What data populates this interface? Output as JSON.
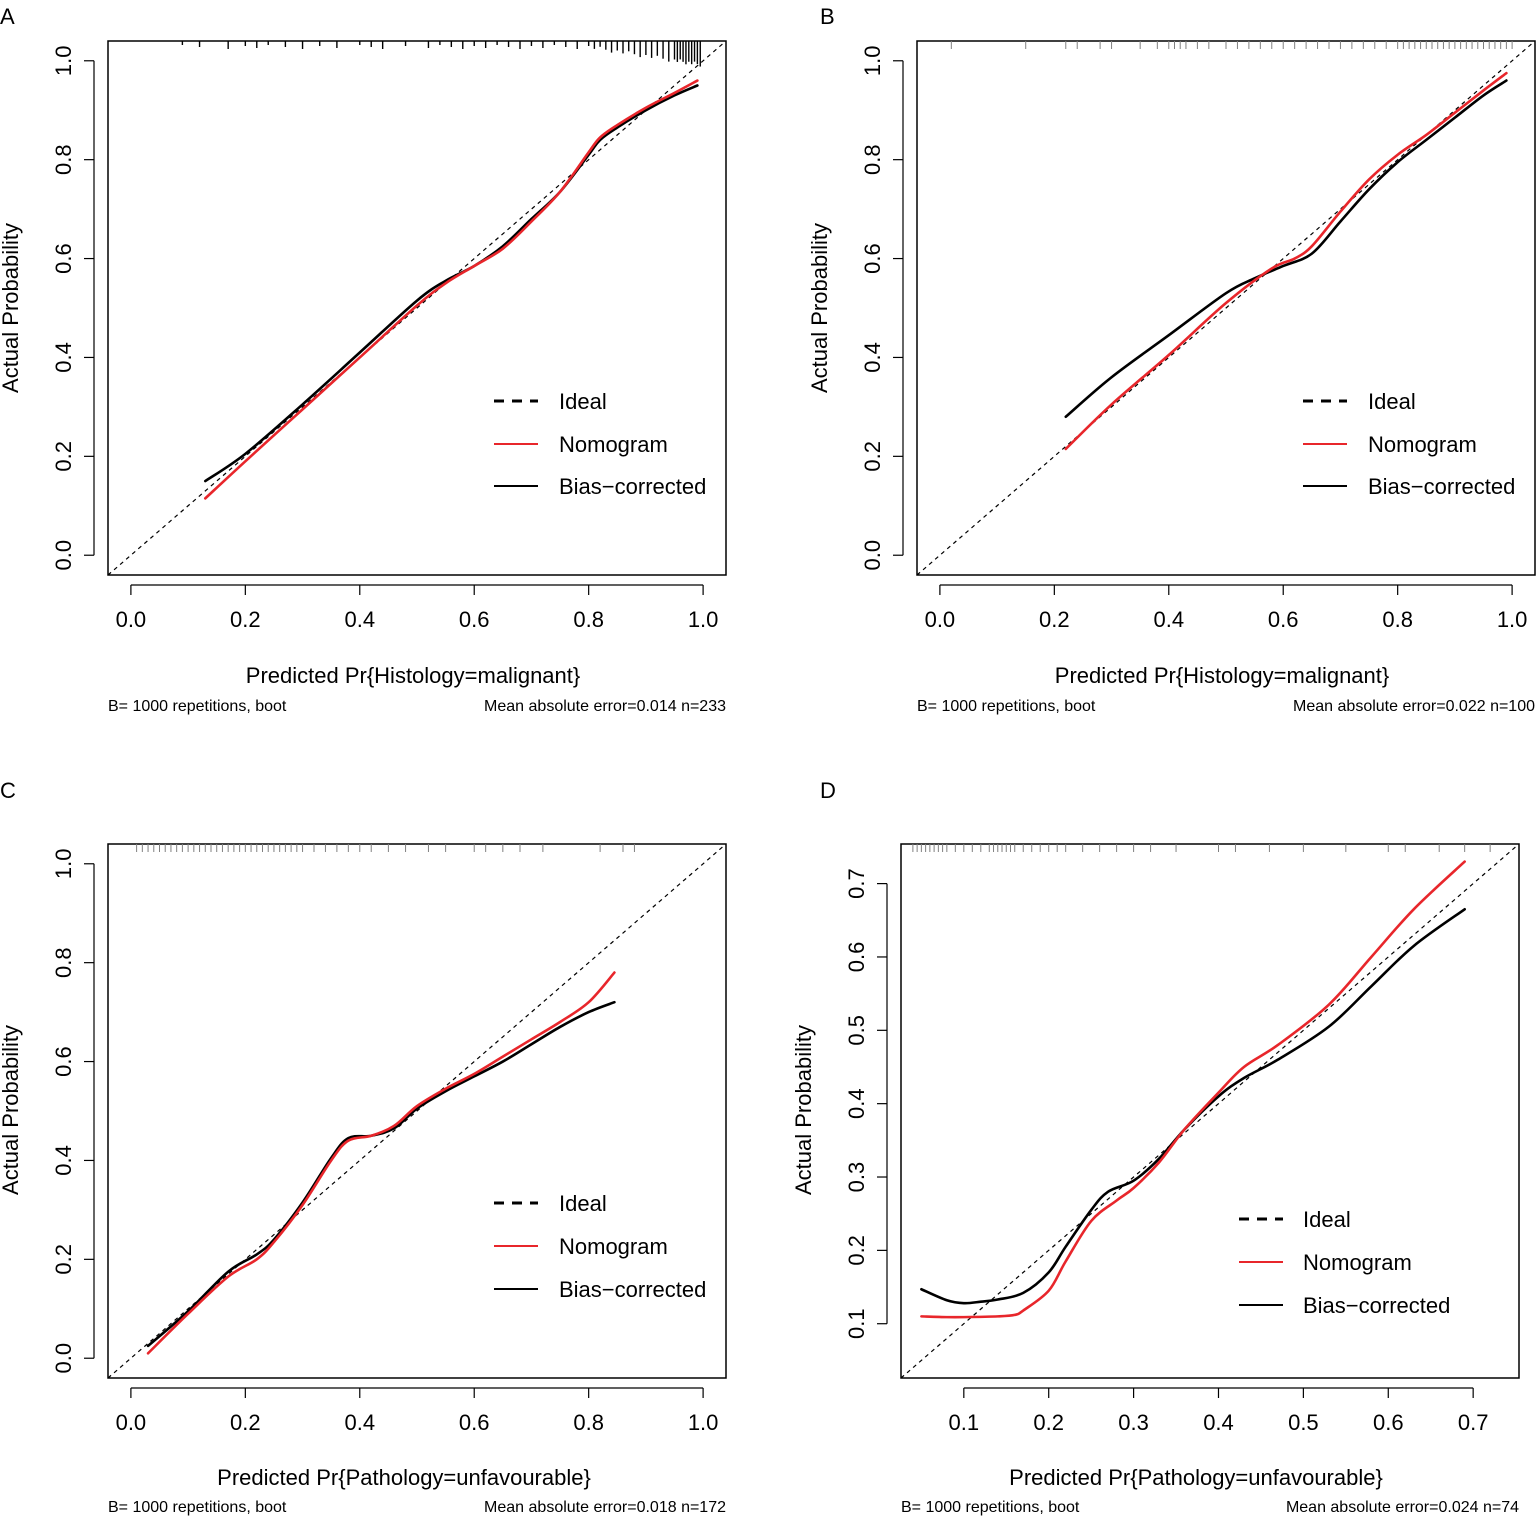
{
  "colors": {
    "nomogram": "#e8262b",
    "bias_corrected": "#000000",
    "ideal": "#000000",
    "rug": "#808080",
    "rug_dark": "#000000"
  },
  "chart_data": [
    {
      "panel": "A",
      "type": "line",
      "xlabel": "Predicted Pr{Histology=malignant}",
      "ylabel": "Actual Probability",
      "xlim": [
        -0.04,
        1.04
      ],
      "ylim": [
        -0.04,
        1.04
      ],
      "xticks": [
        "0.0",
        "0.2",
        "0.4",
        "0.6",
        "0.8",
        "1.0"
      ],
      "yticks": [
        "0.0",
        "0.2",
        "0.4",
        "0.6",
        "0.8",
        "1.0"
      ],
      "legend": [
        "Ideal",
        "Nomogram",
        "Bias−corrected"
      ],
      "legend_position": "bottom-right",
      "footnote_left": "B= 1000 repetitions, boot",
      "footnote_right": "Mean absolute error=0.014 n=233",
      "rug_style": "dark",
      "rug": [
        0.09,
        0.12,
        0.17,
        0.2,
        0.22,
        0.24,
        0.27,
        0.3,
        0.33,
        0.36,
        0.4,
        0.42,
        0.44,
        0.48,
        0.52,
        0.54,
        0.56,
        0.58,
        0.6,
        0.62,
        0.64,
        0.66,
        0.68,
        0.7,
        0.72,
        0.74,
        0.76,
        0.78,
        0.8,
        0.81,
        0.82,
        0.83,
        0.84,
        0.85,
        0.86,
        0.87,
        0.88,
        0.89,
        0.9,
        0.91,
        0.92,
        0.93,
        0.94,
        0.95,
        0.955,
        0.96,
        0.965,
        0.97,
        0.975,
        0.98,
        0.985,
        0.99,
        0.995
      ],
      "series": [
        {
          "name": "Nomogram",
          "x": [
            0.13,
            0.2,
            0.3,
            0.4,
            0.5,
            0.55,
            0.6,
            0.65,
            0.7,
            0.75,
            0.8,
            0.82,
            0.85,
            0.9,
            0.95,
            0.99
          ],
          "y": [
            0.115,
            0.19,
            0.295,
            0.4,
            0.505,
            0.55,
            0.585,
            0.62,
            0.675,
            0.735,
            0.815,
            0.845,
            0.87,
            0.905,
            0.935,
            0.96
          ]
        },
        {
          "name": "Bias-corrected",
          "x": [
            0.13,
            0.2,
            0.3,
            0.4,
            0.5,
            0.55,
            0.6,
            0.65,
            0.7,
            0.75,
            0.8,
            0.82,
            0.85,
            0.9,
            0.95,
            0.99
          ],
          "y": [
            0.15,
            0.205,
            0.305,
            0.41,
            0.515,
            0.555,
            0.585,
            0.625,
            0.68,
            0.735,
            0.81,
            0.84,
            0.865,
            0.9,
            0.93,
            0.95
          ]
        }
      ]
    },
    {
      "panel": "B",
      "type": "line",
      "xlabel": "Predicted Pr{Histology=malignant}",
      "ylabel": "Actual Probability",
      "xlim": [
        -0.04,
        1.04
      ],
      "ylim": [
        -0.04,
        1.04
      ],
      "xticks": [
        "0.0",
        "0.2",
        "0.4",
        "0.6",
        "0.8",
        "1.0"
      ],
      "yticks": [
        "0.0",
        "0.2",
        "0.4",
        "0.6",
        "0.8",
        "1.0"
      ],
      "legend": [
        "Ideal",
        "Nomogram",
        "Bias−corrected"
      ],
      "legend_position": "bottom-right",
      "footnote_left": "B= 1000 repetitions, boot",
      "footnote_right": "Mean absolute error=0.022 n=100",
      "rug_style": "light",
      "rug": [
        0.02,
        0.15,
        0.22,
        0.24,
        0.28,
        0.3,
        0.35,
        0.38,
        0.4,
        0.41,
        0.42,
        0.43,
        0.45,
        0.47,
        0.5,
        0.52,
        0.54,
        0.56,
        0.58,
        0.6,
        0.62,
        0.64,
        0.66,
        0.68,
        0.7,
        0.72,
        0.74,
        0.76,
        0.78,
        0.8,
        0.81,
        0.82,
        0.83,
        0.84,
        0.85,
        0.86,
        0.87,
        0.88,
        0.89,
        0.9,
        0.91,
        0.92,
        0.93,
        0.94,
        0.95,
        0.96,
        0.97,
        0.98,
        0.99,
        1.0
      ],
      "series": [
        {
          "name": "Nomogram",
          "x": [
            0.22,
            0.3,
            0.4,
            0.5,
            0.58,
            0.62,
            0.65,
            0.7,
            0.75,
            0.8,
            0.85,
            0.9,
            0.95,
            0.99
          ],
          "y": [
            0.215,
            0.305,
            0.405,
            0.51,
            0.58,
            0.6,
            0.625,
            0.695,
            0.76,
            0.81,
            0.85,
            0.895,
            0.94,
            0.975
          ]
        },
        {
          "name": "Bias-corrected",
          "x": [
            0.22,
            0.3,
            0.4,
            0.5,
            0.55,
            0.6,
            0.65,
            0.7,
            0.75,
            0.8,
            0.85,
            0.9,
            0.95,
            0.99
          ],
          "y": [
            0.28,
            0.36,
            0.445,
            0.53,
            0.56,
            0.585,
            0.61,
            0.675,
            0.74,
            0.795,
            0.84,
            0.885,
            0.93,
            0.96
          ]
        }
      ]
    },
    {
      "panel": "C",
      "type": "line",
      "xlabel": "Predicted Pr{Pathology=unfavourable}",
      "ylabel": "Actual Probability",
      "xlim": [
        -0.04,
        1.04
      ],
      "ylim": [
        -0.04,
        1.04
      ],
      "xticks": [
        "0.0",
        "0.2",
        "0.4",
        "0.6",
        "0.8",
        "1.0"
      ],
      "yticks": [
        "0.0",
        "0.2",
        "0.4",
        "0.6",
        "0.8",
        "1.0"
      ],
      "legend": [
        "Ideal",
        "Nomogram",
        "Bias−corrected"
      ],
      "legend_position": "bottom-right",
      "footnote_left": "B= 1000 repetitions, boot",
      "footnote_right": "Mean absolute error=0.018 n=172",
      "rug_style": "light",
      "rug": [
        0.01,
        0.02,
        0.03,
        0.04,
        0.05,
        0.06,
        0.07,
        0.08,
        0.09,
        0.1,
        0.11,
        0.12,
        0.13,
        0.14,
        0.15,
        0.16,
        0.17,
        0.18,
        0.19,
        0.2,
        0.21,
        0.22,
        0.23,
        0.24,
        0.25,
        0.26,
        0.27,
        0.28,
        0.29,
        0.3,
        0.32,
        0.34,
        0.36,
        0.38,
        0.4,
        0.42,
        0.45,
        0.48,
        0.52,
        0.55,
        0.6,
        0.62,
        0.65,
        0.68,
        0.72,
        0.82,
        0.86,
        0.88
      ],
      "series": [
        {
          "name": "Nomogram",
          "x": [
            0.03,
            0.1,
            0.17,
            0.22,
            0.25,
            0.3,
            0.35,
            0.38,
            0.42,
            0.46,
            0.5,
            0.55,
            0.6,
            0.65,
            0.7,
            0.75,
            0.8,
            0.845
          ],
          "y": [
            0.01,
            0.09,
            0.165,
            0.2,
            0.235,
            0.31,
            0.4,
            0.44,
            0.45,
            0.47,
            0.51,
            0.545,
            0.575,
            0.61,
            0.645,
            0.68,
            0.72,
            0.78
          ]
        },
        {
          "name": "Bias-corrected",
          "x": [
            0.03,
            0.1,
            0.17,
            0.22,
            0.25,
            0.3,
            0.35,
            0.38,
            0.42,
            0.46,
            0.5,
            0.55,
            0.6,
            0.65,
            0.7,
            0.75,
            0.8,
            0.845
          ],
          "y": [
            0.025,
            0.095,
            0.175,
            0.21,
            0.24,
            0.315,
            0.405,
            0.445,
            0.45,
            0.465,
            0.505,
            0.54,
            0.57,
            0.6,
            0.635,
            0.67,
            0.7,
            0.72
          ]
        }
      ]
    },
    {
      "panel": "D",
      "type": "line",
      "xlabel": "Predicted Pr{Pathology=unfavourable}",
      "ylabel": "Actual Probability",
      "xlim": [
        0.026,
        0.754
      ],
      "ylim": [
        0.026,
        0.754
      ],
      "xticks": [
        "0.1",
        "0.2",
        "0.3",
        "0.4",
        "0.5",
        "0.6",
        "0.7"
      ],
      "yticks": [
        "0.1",
        "0.2",
        "0.3",
        "0.4",
        "0.5",
        "0.6",
        "0.7"
      ],
      "legend": [
        "Ideal",
        "Nomogram",
        "Bias−corrected"
      ],
      "legend_position": "bottom-right",
      "footnote_left": "B= 1000 repetitions, boot",
      "footnote_right": "Mean absolute error=0.024 n=74",
      "rug_style": "light",
      "rug": [
        0.04,
        0.045,
        0.05,
        0.055,
        0.06,
        0.065,
        0.07,
        0.075,
        0.08,
        0.09,
        0.1,
        0.11,
        0.12,
        0.13,
        0.135,
        0.14,
        0.145,
        0.15,
        0.155,
        0.16,
        0.17,
        0.18,
        0.19,
        0.2,
        0.21,
        0.22,
        0.24,
        0.26,
        0.28,
        0.3,
        0.32,
        0.35,
        0.4,
        0.42,
        0.46,
        0.5,
        0.55,
        0.6,
        0.62,
        0.66,
        0.69,
        0.72
      ],
      "series": [
        {
          "name": "Nomogram",
          "x": [
            0.05,
            0.08,
            0.1,
            0.14,
            0.16,
            0.17,
            0.2,
            0.22,
            0.25,
            0.28,
            0.3,
            0.33,
            0.36,
            0.4,
            0.43,
            0.47,
            0.53,
            0.58,
            0.63,
            0.69
          ],
          "y": [
            0.11,
            0.109,
            0.109,
            0.11,
            0.112,
            0.118,
            0.145,
            0.185,
            0.24,
            0.268,
            0.285,
            0.32,
            0.365,
            0.415,
            0.45,
            0.48,
            0.535,
            0.6,
            0.665,
            0.73
          ]
        },
        {
          "name": "Bias-corrected",
          "x": [
            0.05,
            0.08,
            0.1,
            0.12,
            0.14,
            0.17,
            0.2,
            0.22,
            0.25,
            0.27,
            0.3,
            0.33,
            0.36,
            0.4,
            0.43,
            0.47,
            0.53,
            0.58,
            0.63,
            0.69
          ],
          "y": [
            0.147,
            0.132,
            0.128,
            0.13,
            0.133,
            0.142,
            0.17,
            0.205,
            0.255,
            0.28,
            0.295,
            0.325,
            0.365,
            0.41,
            0.435,
            0.46,
            0.505,
            0.56,
            0.615,
            0.665
          ]
        }
      ]
    }
  ]
}
